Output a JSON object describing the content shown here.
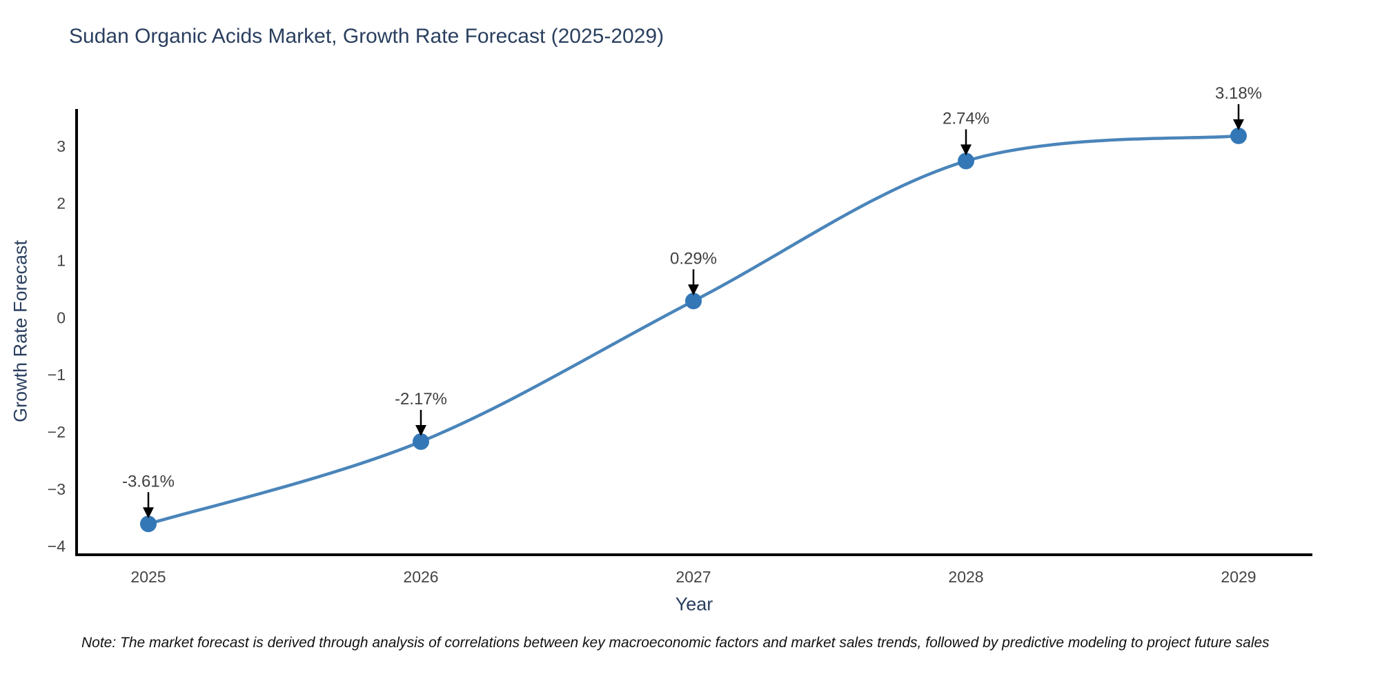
{
  "header": {
    "title": "Sudan Organic Acids Market, Growth Rate Forecast (2025-2029)"
  },
  "footnote": "Note: The market forecast is derived through analysis of correlations between key macroeconomic factors and market sales trends, followed by predictive modeling to project future sales",
  "chart_data": {
    "type": "line",
    "title": "Sudan Organic Acids Market, Growth Rate Forecast (2025-2029)",
    "xlabel": "Year",
    "ylabel": "Growth Rate Forecast",
    "x": [
      2025,
      2026,
      2027,
      2028,
      2029
    ],
    "values": [
      -3.61,
      -2.17,
      0.29,
      2.74,
      3.18
    ],
    "point_labels": [
      "-3.61%",
      "-2.17%",
      "0.29%",
      "2.74%",
      "3.18%"
    ],
    "yticks": [
      3,
      2,
      1,
      0,
      -1,
      -2,
      -3,
      -4
    ],
    "ylim": [
      -4.15,
      3.65
    ],
    "grid": false,
    "legend": "none",
    "line_shape": "spline",
    "colors": {
      "line": "#4a85ba",
      "marker": "#3377b7",
      "axis": "#000000",
      "title_text": "#2a3f5f",
      "tick_text": "#444444",
      "annotation_text": "#3f3f3f",
      "arrow": "#000000"
    }
  }
}
